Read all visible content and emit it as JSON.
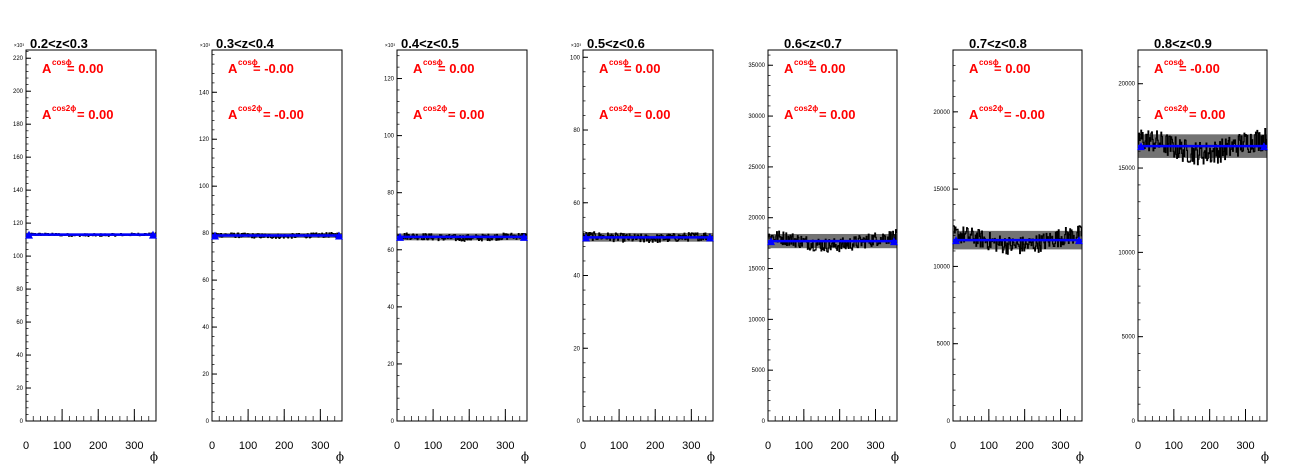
{
  "colors": {
    "data": "#000000",
    "fit": "#0000ff",
    "annotation": "#ff0000",
    "frame": "#000000"
  },
  "chart_data": [
    {
      "type": "line",
      "title": "0.2<z<0.3",
      "xlabel": "ϕ",
      "ylabel": "",
      "xlim": [
        0,
        360
      ],
      "ylim": [
        0,
        225
      ],
      "y_multiplier": "×10³",
      "xticks": [
        "0",
        "100",
        "200",
        "300"
      ],
      "yticks": [
        "0",
        "20",
        "40",
        "60",
        "80",
        "100",
        "120",
        "140",
        "160",
        "180",
        "200",
        "220"
      ],
      "series": [
        {
          "kind": "histogram",
          "level": 113,
          "spread": 0.8
        },
        {
          "kind": "fit",
          "level": 113
        }
      ],
      "annotations": {
        "cos": {
          "base": "A",
          "sup": "cosϕ",
          "value": "= 0.00"
        },
        "cos2": {
          "base": "A",
          "sup": "cos2ϕ",
          "value": "= 0.00"
        }
      }
    },
    {
      "type": "line",
      "title": "0.3<z<0.4",
      "xlabel": "ϕ",
      "ylabel": "",
      "xlim": [
        0,
        360
      ],
      "ylim": [
        0,
        158
      ],
      "y_multiplier": "×10³",
      "xticks": [
        "0",
        "100",
        "200",
        "300"
      ],
      "yticks": [
        "0",
        "20",
        "40",
        "60",
        "80",
        "100",
        "120",
        "140"
      ],
      "series": [
        {
          "kind": "histogram",
          "level": 79,
          "spread": 1.0
        },
        {
          "kind": "fit",
          "level": 79
        }
      ],
      "annotations": {
        "cos": {
          "base": "A",
          "sup": "cosϕ",
          "value": "= -0.00"
        },
        "cos2": {
          "base": "A",
          "sup": "cos2ϕ",
          "value": "= -0.00"
        }
      }
    },
    {
      "type": "line",
      "title": "0.4<z<0.5",
      "xlabel": "ϕ",
      "ylabel": "",
      "xlim": [
        0,
        360
      ],
      "ylim": [
        0,
        130
      ],
      "y_multiplier": "×10³",
      "xticks": [
        "0",
        "100",
        "200",
        "300"
      ],
      "yticks": [
        "0",
        "20",
        "40",
        "60",
        "80",
        "100",
        "120"
      ],
      "series": [
        {
          "kind": "histogram",
          "level": 64.5,
          "spread": 1.2
        },
        {
          "kind": "fit",
          "level": 64.5
        }
      ],
      "annotations": {
        "cos": {
          "base": "A",
          "sup": "cosϕ",
          "value": "= 0.00"
        },
        "cos2": {
          "base": "A",
          "sup": "cos2ϕ",
          "value": "= 0.00"
        }
      }
    },
    {
      "type": "line",
      "title": "0.5<z<0.6",
      "xlabel": "ϕ",
      "ylabel": "",
      "xlim": [
        0,
        360
      ],
      "ylim": [
        0,
        102
      ],
      "y_multiplier": "×10³",
      "xticks": [
        "0",
        "100",
        "200",
        "300"
      ],
      "yticks": [
        "0",
        "20",
        "40",
        "60",
        "80",
        "100"
      ],
      "series": [
        {
          "kind": "histogram",
          "level": 50.5,
          "spread": 1.2
        },
        {
          "kind": "fit",
          "level": 50.5
        }
      ],
      "annotations": {
        "cos": {
          "base": "A",
          "sup": "cosϕ",
          "value": "= 0.00"
        },
        "cos2": {
          "base": "A",
          "sup": "cos2ϕ",
          "value": "= 0.00"
        }
      }
    },
    {
      "type": "line",
      "title": "0.6<z<0.7",
      "xlabel": "ϕ",
      "ylabel": "",
      "xlim": [
        0,
        360
      ],
      "ylim": [
        0,
        36500
      ],
      "y_multiplier": "",
      "xticks": [
        "0",
        "100",
        "200",
        "300"
      ],
      "yticks": [
        "0",
        "5000",
        "10000",
        "15000",
        "20000",
        "25000",
        "30000",
        "35000"
      ],
      "series": [
        {
          "kind": "histogram",
          "level": 17700,
          "spread": 700
        },
        {
          "kind": "fit",
          "level": 17700
        }
      ],
      "annotations": {
        "cos": {
          "base": "A",
          "sup": "cosϕ",
          "value": "= 0.00"
        },
        "cos2": {
          "base": "A",
          "sup": "cos2ϕ",
          "value": "= 0.00"
        }
      }
    },
    {
      "type": "line",
      "title": "0.7<z<0.8",
      "xlabel": "ϕ",
      "ylabel": "",
      "xlim": [
        0,
        360
      ],
      "ylim": [
        0,
        24000
      ],
      "y_multiplier": "",
      "xticks": [
        "0",
        "100",
        "200",
        "300"
      ],
      "yticks": [
        "0",
        "5000",
        "10000",
        "15000",
        "20000"
      ],
      "series": [
        {
          "kind": "histogram",
          "level": 11700,
          "spread": 600
        },
        {
          "kind": "fit",
          "level": 11700
        }
      ],
      "annotations": {
        "cos": {
          "base": "A",
          "sup": "cosϕ",
          "value": "= 0.00"
        },
        "cos2": {
          "base": "A",
          "sup": "cos2ϕ",
          "value": "= -0.00"
        }
      }
    },
    {
      "type": "line",
      "title": "0.8<z<0.9",
      "xlabel": "ϕ",
      "ylabel": "",
      "xlim": [
        0,
        360
      ],
      "ylim": [
        0,
        22000
      ],
      "y_multiplier": "",
      "xticks": [
        "0",
        "100",
        "200",
        "300"
      ],
      "yticks": [
        "0",
        "5000",
        "10000",
        "15000",
        "20000"
      ],
      "series": [
        {
          "kind": "histogram",
          "level": 16300,
          "spread": 700
        },
        {
          "kind": "fit",
          "level": 16300
        }
      ],
      "annotations": {
        "cos": {
          "base": "A",
          "sup": "cosϕ",
          "value": "= -0.00"
        },
        "cos2": {
          "base": "A",
          "sup": "cos2ϕ",
          "value": "= 0.00"
        }
      }
    }
  ]
}
